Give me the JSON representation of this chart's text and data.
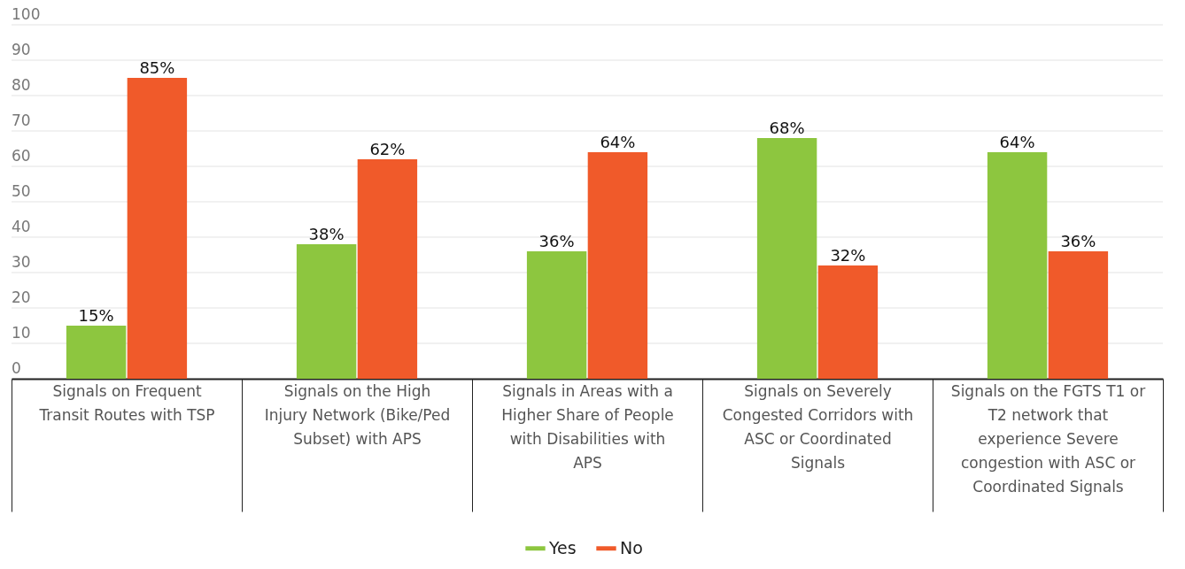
{
  "chart_data": {
    "type": "bar",
    "categories": [
      "Signals on Frequent Transit Routes with TSP",
      "Signals on the High Injury Network (Bike/Ped Subset) with APS",
      "Signals in Areas with a Higher Share of People with Disabilities with APS",
      "Signals on Severely Congested Corridors with ASC or Coordinated Signals",
      "Signals on the FGTS T1 or T2 network that experience Severe congestion with ASC or Coordinated Signals"
    ],
    "series": [
      {
        "name": "Yes",
        "color": "#8dc63f",
        "values": [
          15,
          38,
          36,
          68,
          64
        ],
        "value_labels": [
          "15%",
          "38%",
          "36%",
          "68%",
          "64%"
        ]
      },
      {
        "name": "No",
        "color": "#f05a2a",
        "values": [
          85,
          62,
          64,
          32,
          36
        ],
        "value_labels": [
          "85%",
          "62%",
          "64%",
          "32%",
          "36%"
        ]
      }
    ],
    "ylim": [
      0,
      100
    ],
    "yticks": [
      0,
      10,
      20,
      30,
      40,
      50,
      60,
      70,
      80,
      90,
      100
    ],
    "grid": "y",
    "legend": "bottom"
  }
}
